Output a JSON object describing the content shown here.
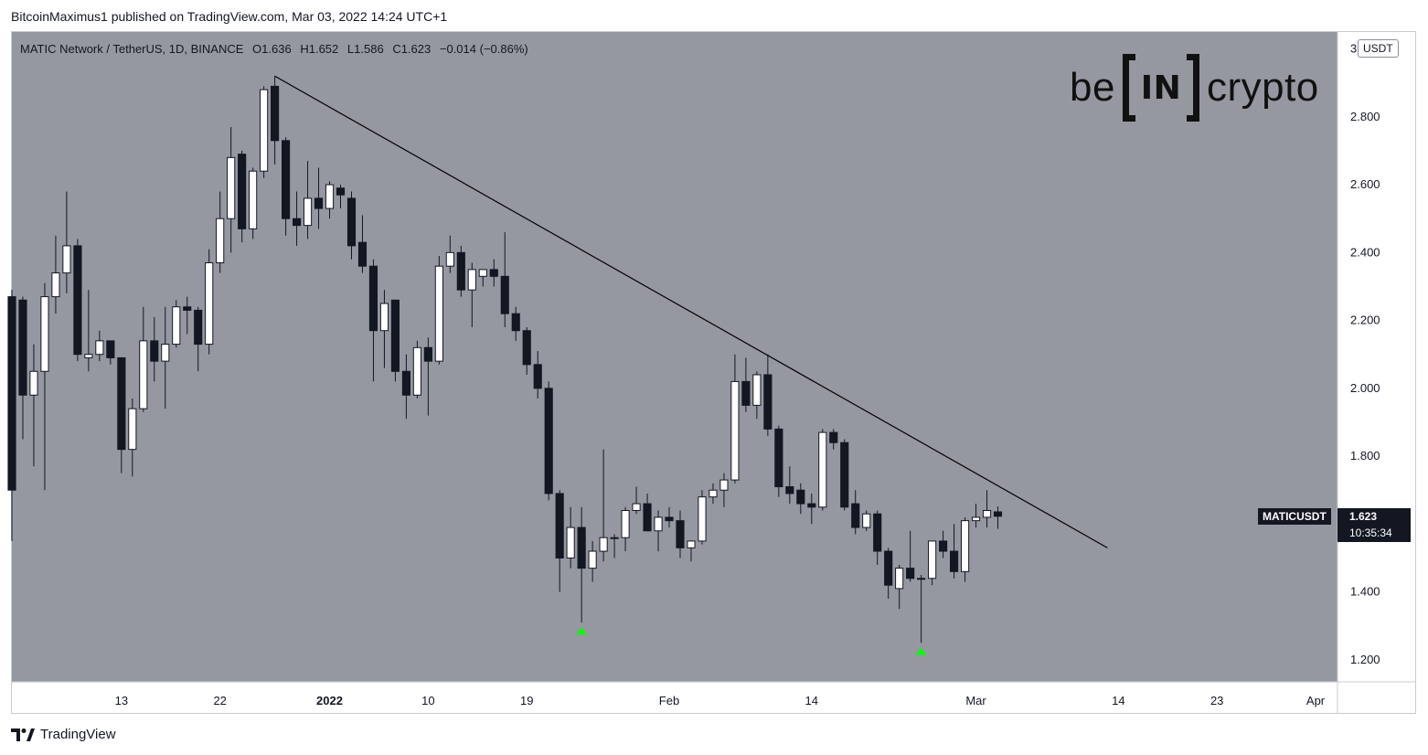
{
  "header": {
    "published": "BitcoinMaximus1 published on TradingView.com, Mar 03, 2022 14:24 UTC+1"
  },
  "legend": {
    "symbol": "MATIC Network / TetherUS, 1D, BINANCE",
    "o_label": "O",
    "o_value": "1.636",
    "h_label": "H",
    "h_value": "1.652",
    "l_label": "L",
    "l_value": "1.586",
    "c_label": "C",
    "c_value": "1.623",
    "change": "−0.014 (−0.86%)"
  },
  "logo": {
    "left": "be",
    "mid": "IN",
    "right": "crypto"
  },
  "currency": "USDT",
  "price_tag": {
    "symbol": "MATICUSDT",
    "price": "1.623",
    "countdown": "10:35:34"
  },
  "footer": {
    "brand": "TradingView"
  },
  "colors": {
    "background": "#9598a1",
    "up_body": "#ffffff",
    "down_body": "#131722",
    "wick": "#131722",
    "trendline": "#000000",
    "marker": "#00ff00"
  },
  "chart_data": {
    "type": "candlestick",
    "interval": "1D",
    "ylim": [
      1.135,
      3.05
    ],
    "y_ticks": [
      "2.800",
      "2.600",
      "2.400",
      "2.200",
      "2.000",
      "1.800",
      "1.600",
      "1.400",
      "1.200"
    ],
    "y_top_tick": "3",
    "x_ticks": [
      {
        "date": "2021-12-13",
        "label": "13"
      },
      {
        "date": "2021-12-22",
        "label": "22"
      },
      {
        "date": "2022-01-01",
        "label": "2022"
      },
      {
        "date": "2022-01-10",
        "label": "10"
      },
      {
        "date": "2022-01-19",
        "label": "19"
      },
      {
        "date": "2022-02-01",
        "label": "Feb"
      },
      {
        "date": "2022-02-14",
        "label": "14"
      },
      {
        "date": "2022-03-01",
        "label": "Mar"
      },
      {
        "date": "2022-03-14",
        "label": "14"
      },
      {
        "date": "2022-03-23",
        "label": "23"
      },
      {
        "date": "2022-04-01",
        "label": "Apr"
      }
    ],
    "x_range": [
      "2021-12-03",
      "2022-04-03"
    ],
    "candles": [
      [
        "2021-12-03",
        2.27,
        2.29,
        1.55,
        1.7
      ],
      [
        "2021-12-04",
        2.26,
        2.27,
        1.85,
        1.98
      ],
      [
        "2021-12-05",
        1.98,
        2.13,
        1.77,
        2.05
      ],
      [
        "2021-12-06",
        2.05,
        2.31,
        1.7,
        2.27
      ],
      [
        "2021-12-07",
        2.27,
        2.45,
        2.22,
        2.34
      ],
      [
        "2021-12-08",
        2.34,
        2.58,
        2.28,
        2.42
      ],
      [
        "2021-12-09",
        2.42,
        2.44,
        2.08,
        2.1
      ],
      [
        "2021-12-10",
        2.09,
        2.29,
        2.05,
        2.1
      ],
      [
        "2021-12-11",
        2.1,
        2.17,
        2.08,
        2.14
      ],
      [
        "2021-12-12",
        2.14,
        2.14,
        2.07,
        2.09
      ],
      [
        "2021-12-13",
        2.09,
        2.09,
        1.75,
        1.82
      ],
      [
        "2021-12-14",
        1.82,
        1.97,
        1.74,
        1.94
      ],
      [
        "2021-12-15",
        1.94,
        2.24,
        1.93,
        2.14
      ],
      [
        "2021-12-16",
        2.14,
        2.21,
        2.02,
        2.08
      ],
      [
        "2021-12-17",
        2.08,
        2.24,
        1.94,
        2.13
      ],
      [
        "2021-12-18",
        2.13,
        2.26,
        2.12,
        2.24
      ],
      [
        "2021-12-19",
        2.24,
        2.27,
        2.16,
        2.23
      ],
      [
        "2021-12-20",
        2.23,
        2.24,
        2.05,
        2.13
      ],
      [
        "2021-12-21",
        2.13,
        2.41,
        2.1,
        2.37
      ],
      [
        "2021-12-22",
        2.37,
        2.58,
        2.34,
        2.5
      ],
      [
        "2021-12-23",
        2.5,
        2.77,
        2.4,
        2.68
      ],
      [
        "2021-12-24",
        2.69,
        2.7,
        2.43,
        2.47
      ],
      [
        "2021-12-25",
        2.47,
        2.65,
        2.44,
        2.64
      ],
      [
        "2021-12-26",
        2.64,
        2.89,
        2.62,
        2.88
      ],
      [
        "2021-12-27",
        2.89,
        2.92,
        2.66,
        2.73
      ],
      [
        "2021-12-28",
        2.73,
        2.74,
        2.45,
        2.5
      ],
      [
        "2021-12-29",
        2.5,
        2.58,
        2.42,
        2.48
      ],
      [
        "2021-12-30",
        2.48,
        2.67,
        2.44,
        2.56
      ],
      [
        "2021-12-31",
        2.56,
        2.65,
        2.47,
        2.53
      ],
      [
        "2022-01-01",
        2.53,
        2.61,
        2.5,
        2.6
      ],
      [
        "2022-01-02",
        2.59,
        2.6,
        2.53,
        2.57
      ],
      [
        "2022-01-03",
        2.56,
        2.58,
        2.38,
        2.42
      ],
      [
        "2022-01-04",
        2.43,
        2.51,
        2.34,
        2.36
      ],
      [
        "2022-01-05",
        2.36,
        2.38,
        2.02,
        2.17
      ],
      [
        "2022-01-06",
        2.17,
        2.29,
        2.06,
        2.25
      ],
      [
        "2022-01-07",
        2.26,
        2.26,
        2.02,
        2.05
      ],
      [
        "2022-01-08",
        2.05,
        2.1,
        1.91,
        1.98
      ],
      [
        "2022-01-09",
        1.98,
        2.14,
        1.97,
        2.12
      ],
      [
        "2022-01-10",
        2.12,
        2.15,
        1.92,
        2.08
      ],
      [
        "2022-01-11",
        2.08,
        2.39,
        2.07,
        2.36
      ],
      [
        "2022-01-12",
        2.36,
        2.45,
        2.34,
        2.4
      ],
      [
        "2022-01-13",
        2.4,
        2.42,
        2.27,
        2.29
      ],
      [
        "2022-01-14",
        2.29,
        2.37,
        2.18,
        2.35
      ],
      [
        "2022-01-15",
        2.33,
        2.35,
        2.3,
        2.35
      ],
      [
        "2022-01-16",
        2.35,
        2.38,
        2.3,
        2.33
      ],
      [
        "2022-01-17",
        2.33,
        2.46,
        2.18,
        2.22
      ],
      [
        "2022-01-18",
        2.22,
        2.24,
        2.14,
        2.17
      ],
      [
        "2022-01-19",
        2.17,
        2.18,
        2.04,
        2.07
      ],
      [
        "2022-01-20",
        2.07,
        2.11,
        1.97,
        2.0
      ],
      [
        "2022-01-21",
        2.0,
        2.02,
        1.67,
        1.69
      ],
      [
        "2022-01-22",
        1.69,
        1.7,
        1.4,
        1.5
      ],
      [
        "2022-01-23",
        1.5,
        1.65,
        1.47,
        1.59
      ],
      [
        "2022-01-24",
        1.59,
        1.65,
        1.31,
        1.47
      ],
      [
        "2022-01-25",
        1.47,
        1.55,
        1.43,
        1.52
      ],
      [
        "2022-01-26",
        1.52,
        1.82,
        1.49,
        1.56
      ],
      [
        "2022-01-27",
        1.56,
        1.57,
        1.5,
        1.56
      ],
      [
        "2022-01-28",
        1.56,
        1.65,
        1.52,
        1.64
      ],
      [
        "2022-01-29",
        1.64,
        1.71,
        1.63,
        1.66
      ],
      [
        "2022-01-30",
        1.66,
        1.69,
        1.58,
        1.58
      ],
      [
        "2022-01-31",
        1.58,
        1.64,
        1.52,
        1.62
      ],
      [
        "2022-02-01",
        1.62,
        1.65,
        1.59,
        1.61
      ],
      [
        "2022-02-02",
        1.61,
        1.64,
        1.5,
        1.53
      ],
      [
        "2022-02-03",
        1.53,
        1.55,
        1.49,
        1.55
      ],
      [
        "2022-02-04",
        1.55,
        1.7,
        1.54,
        1.68
      ],
      [
        "2022-02-05",
        1.68,
        1.72,
        1.66,
        1.7
      ],
      [
        "2022-02-06",
        1.7,
        1.75,
        1.65,
        1.73
      ],
      [
        "2022-02-07",
        1.73,
        2.1,
        1.72,
        2.02
      ],
      [
        "2022-02-08",
        2.02,
        2.09,
        1.93,
        1.95
      ],
      [
        "2022-02-09",
        1.95,
        2.05,
        1.91,
        2.04
      ],
      [
        "2022-02-10",
        2.04,
        2.1,
        1.86,
        1.88
      ],
      [
        "2022-02-11",
        1.88,
        1.89,
        1.68,
        1.71
      ],
      [
        "2022-02-12",
        1.71,
        1.77,
        1.66,
        1.69
      ],
      [
        "2022-02-13",
        1.7,
        1.72,
        1.63,
        1.66
      ],
      [
        "2022-02-14",
        1.66,
        1.69,
        1.6,
        1.65
      ],
      [
        "2022-02-15",
        1.65,
        1.88,
        1.64,
        1.87
      ],
      [
        "2022-02-16",
        1.87,
        1.88,
        1.82,
        1.84
      ],
      [
        "2022-02-17",
        1.84,
        1.85,
        1.64,
        1.65
      ],
      [
        "2022-02-18",
        1.66,
        1.7,
        1.57,
        1.59
      ],
      [
        "2022-02-19",
        1.59,
        1.64,
        1.58,
        1.63
      ],
      [
        "2022-02-20",
        1.63,
        1.64,
        1.48,
        1.52
      ],
      [
        "2022-02-21",
        1.52,
        1.53,
        1.38,
        1.42
      ],
      [
        "2022-02-22",
        1.41,
        1.48,
        1.35,
        1.47
      ],
      [
        "2022-02-23",
        1.47,
        1.58,
        1.43,
        1.44
      ],
      [
        "2022-02-24",
        1.44,
        1.45,
        1.25,
        1.44
      ],
      [
        "2022-02-25",
        1.44,
        1.55,
        1.42,
        1.55
      ],
      [
        "2022-02-26",
        1.55,
        1.58,
        1.5,
        1.52
      ],
      [
        "2022-02-27",
        1.52,
        1.6,
        1.44,
        1.46
      ],
      [
        "2022-02-28",
        1.46,
        1.62,
        1.43,
        1.61
      ],
      [
        "2022-03-01",
        1.61,
        1.66,
        1.59,
        1.62
      ],
      [
        "2022-03-02",
        1.62,
        1.7,
        1.59,
        1.64
      ],
      [
        "2022-03-03",
        1.636,
        1.652,
        1.586,
        1.623
      ]
    ],
    "trendline": {
      "from": [
        "2021-12-27",
        2.92
      ],
      "to": [
        "2022-03-13",
        1.53
      ]
    },
    "markers": [
      {
        "date": "2022-01-24",
        "price": 1.285,
        "shape": "triangle-up"
      },
      {
        "date": "2022-02-24",
        "price": 1.225,
        "shape": "triangle-up"
      }
    ]
  }
}
